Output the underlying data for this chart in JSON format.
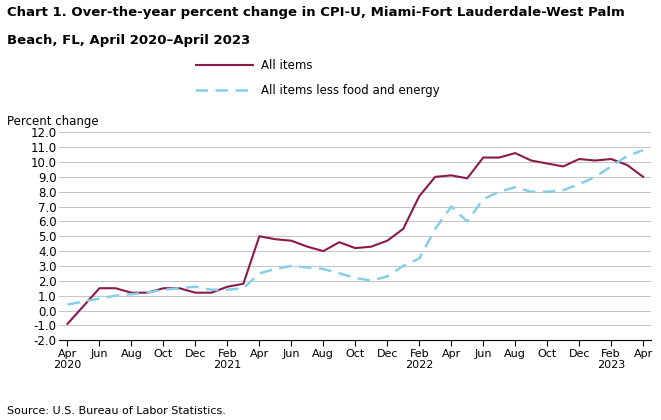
{
  "title_line1": "Chart 1. Over-the-year percent change in CPI-U, Miami-Fort Lauderdale-West Palm",
  "title_line2": "Beach, FL, April 2020–April 2023",
  "ylabel": "Percent change",
  "source": "Source: U.S. Bureau of Labor Statistics.",
  "ylim": [
    -2.0,
    12.0
  ],
  "yticks": [
    -2.0,
    -1.0,
    0.0,
    1.0,
    2.0,
    3.0,
    4.0,
    5.0,
    6.0,
    7.0,
    8.0,
    9.0,
    10.0,
    11.0,
    12.0
  ],
  "all_items_color": "#8B1A4A",
  "core_color": "#87CEEB",
  "all_items_label": "All items",
  "core_label": "All items less food and energy",
  "all_items": [
    -0.9,
    0.3,
    1.5,
    1.5,
    1.2,
    1.2,
    1.5,
    1.5,
    1.2,
    1.2,
    1.6,
    1.8,
    5.0,
    4.8,
    4.7,
    4.3,
    4.0,
    4.6,
    4.2,
    4.3,
    4.7,
    5.5,
    7.7,
    9.0,
    9.1,
    8.9,
    10.3,
    10.3,
    10.6,
    10.1,
    9.9,
    9.7,
    10.2,
    10.1,
    10.2,
    9.8,
    9.0
  ],
  "core": [
    0.4,
    0.6,
    0.8,
    1.0,
    1.1,
    1.2,
    1.4,
    1.5,
    1.6,
    1.4,
    1.4,
    1.5,
    2.5,
    2.8,
    3.0,
    2.9,
    2.8,
    2.5,
    2.2,
    2.0,
    2.3,
    3.0,
    3.5,
    5.5,
    7.0,
    6.0,
    7.5,
    8.0,
    8.3,
    8.0,
    8.0,
    8.1,
    8.5,
    9.0,
    9.7,
    10.4,
    10.8
  ],
  "x_tick_positions": [
    0,
    2,
    4,
    6,
    8,
    10,
    12,
    14,
    16,
    18,
    20,
    22,
    24,
    26,
    28,
    30,
    32,
    34,
    36
  ],
  "x_tick_labels": [
    "Apr\n2020",
    "Jun",
    "Aug",
    "Oct",
    "Dec",
    "Feb\n2021",
    "Apr",
    "Jun",
    "Aug",
    "Oct",
    "Dec",
    "Feb\n2022",
    "Apr",
    "Jun",
    "Aug",
    "Oct",
    "Dec",
    "Feb\n2023",
    "Apr"
  ]
}
